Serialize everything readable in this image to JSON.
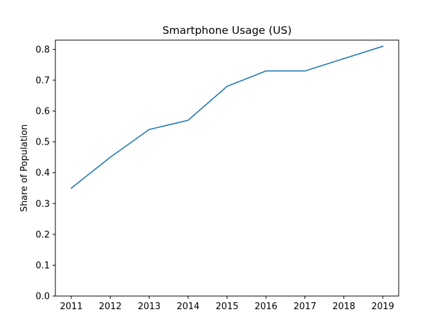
{
  "chart_data": {
    "type": "line",
    "title": "Smartphone Usage (US)",
    "xlabel": "",
    "ylabel": "Share of Population",
    "x": [
      "2011",
      "2012",
      "2013",
      "2014",
      "2015",
      "2016",
      "2017",
      "2018",
      "2019"
    ],
    "series": [
      {
        "values": [
          0.35,
          0.45,
          0.54,
          0.57,
          0.68,
          0.73,
          0.73,
          0.77,
          0.81
        ],
        "color": "#1f77b4"
      }
    ],
    "ylim": [
      0.0,
      0.83
    ],
    "yticks": [
      "0.0",
      "0.1",
      "0.2",
      "0.3",
      "0.4",
      "0.5",
      "0.6",
      "0.7",
      "0.8"
    ],
    "grid": false,
    "legend": "none"
  }
}
